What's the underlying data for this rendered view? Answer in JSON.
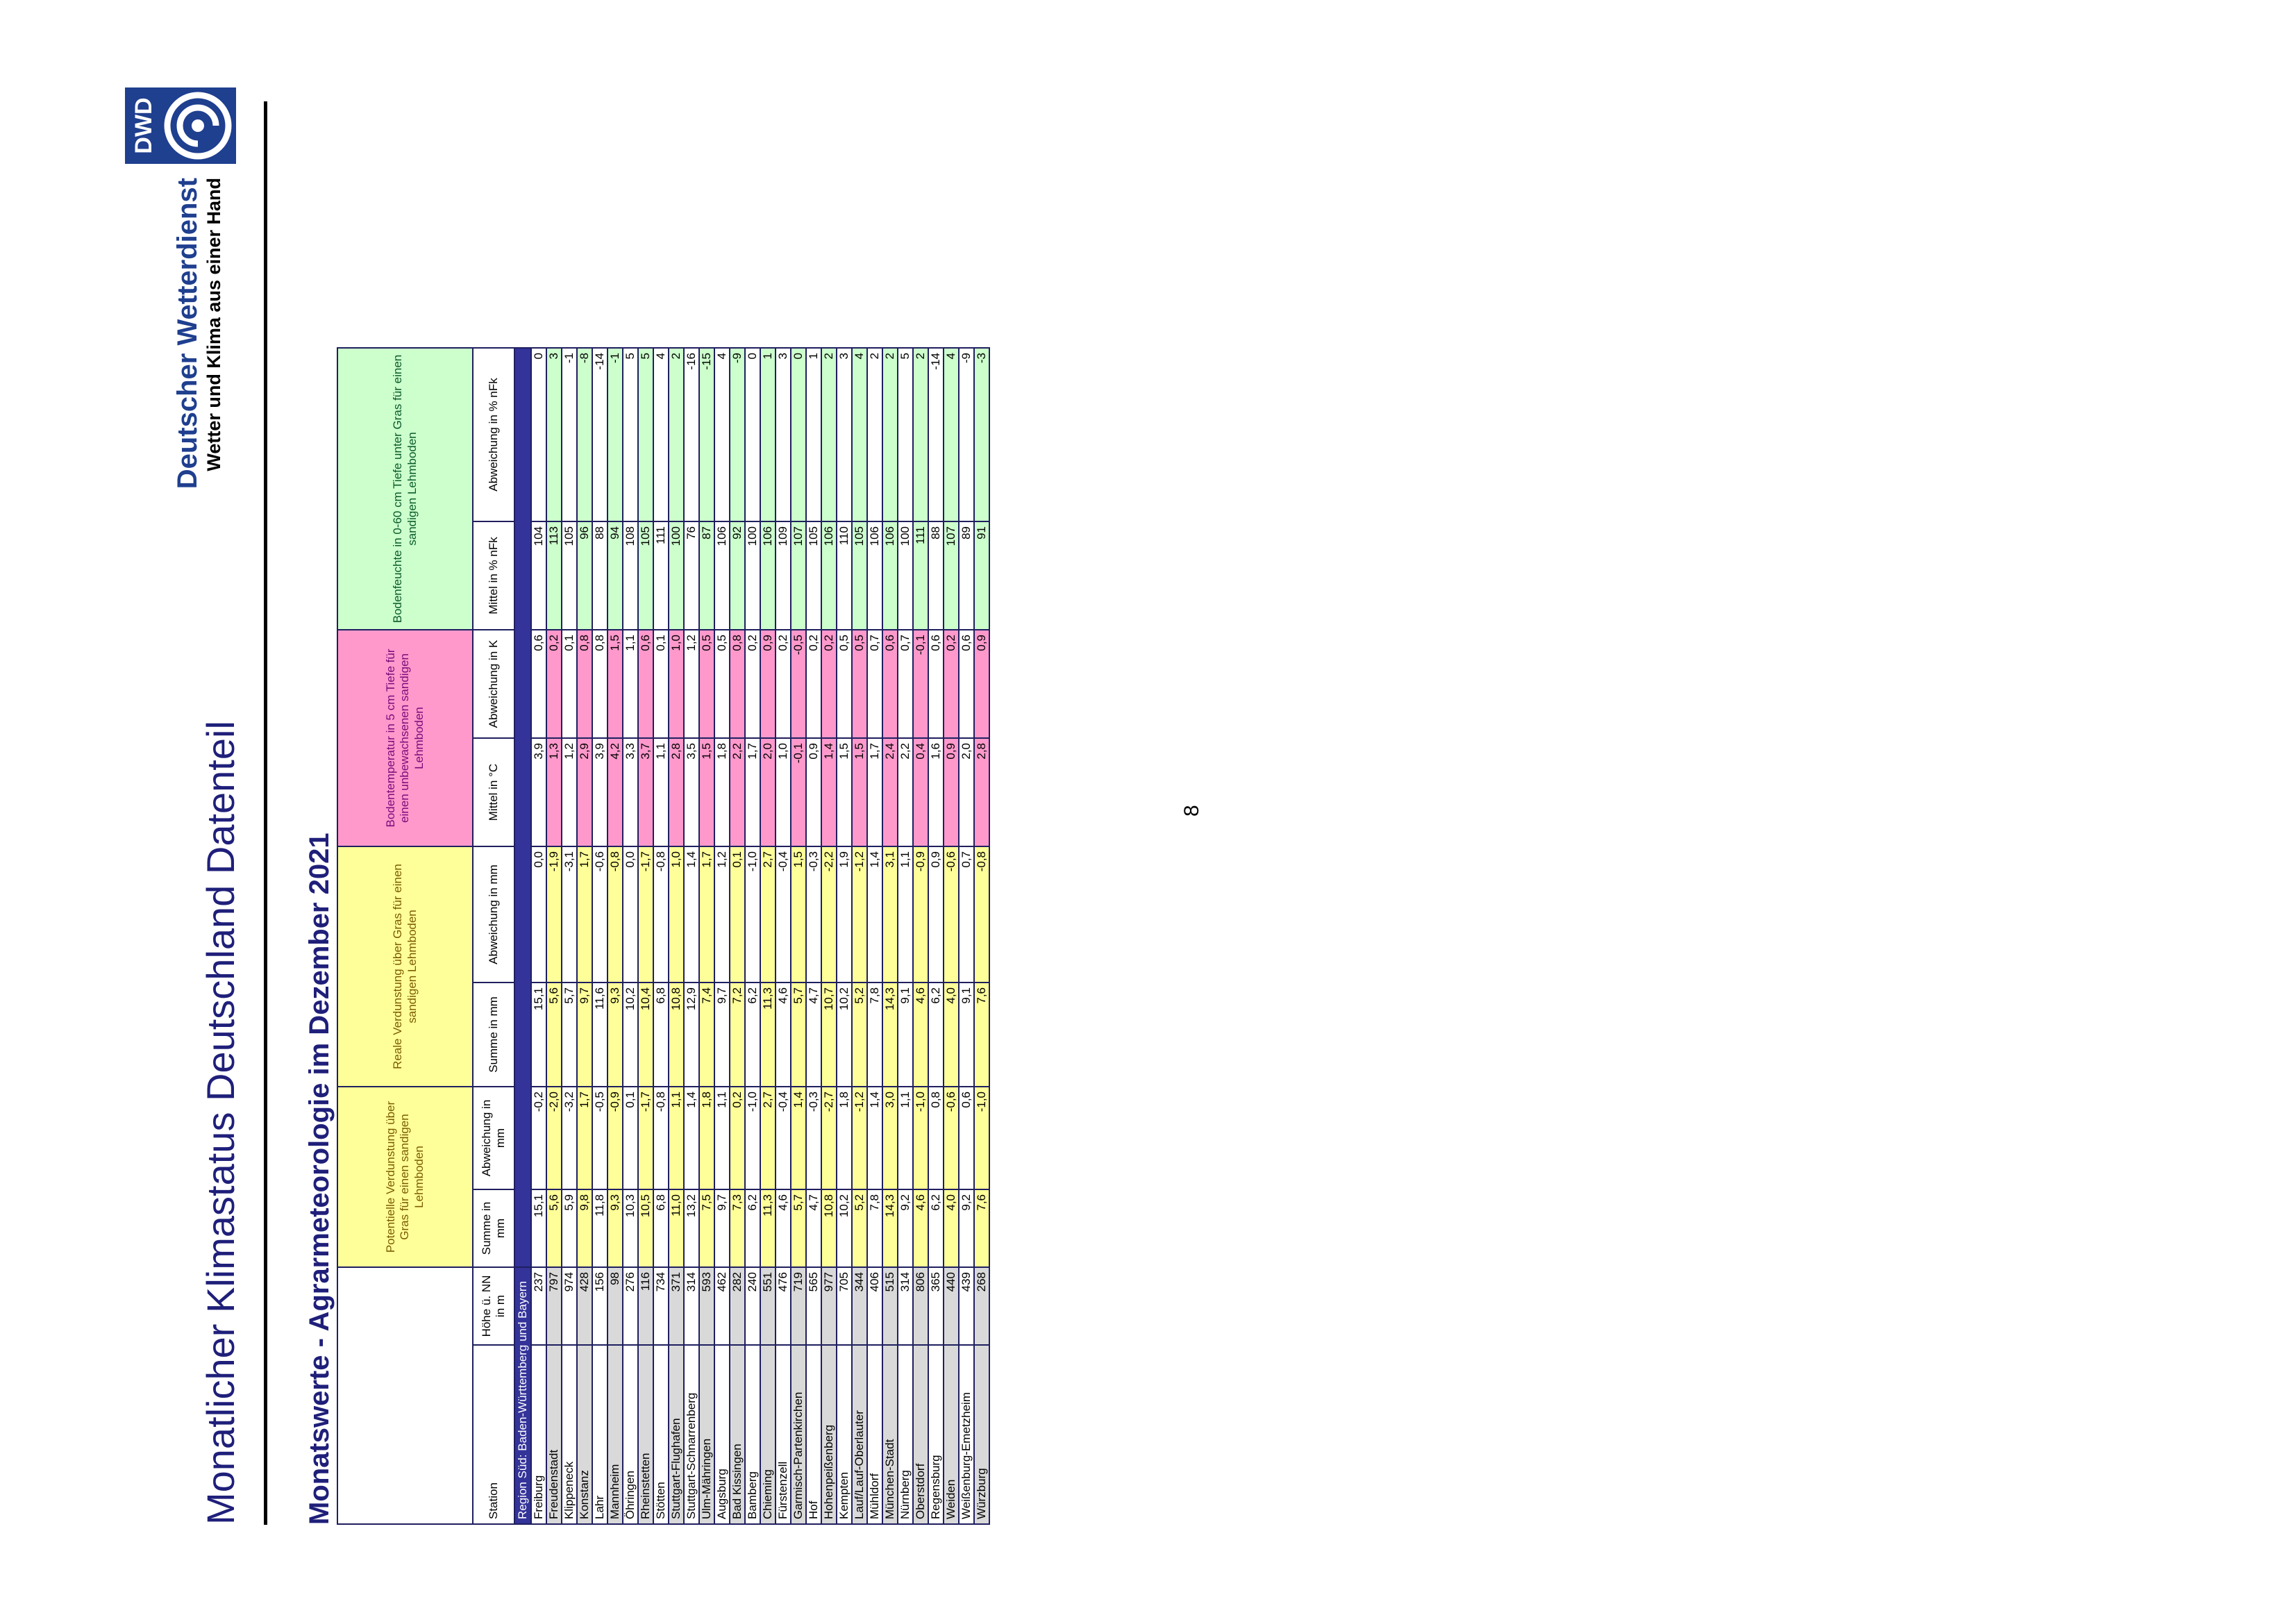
{
  "header": {
    "title": "Monatlicher Klimastatus Deutschland Datenteil",
    "subtitle": "Monatswerte - Agrarmeteorologie im Dezember 2021"
  },
  "brand": {
    "name": "Deutscher Wetterdienst",
    "tagline": "Wetter und Klima aus einer Hand",
    "logo_text": "DWD",
    "logo_icon": "dwd-swirl-icon",
    "logo_color": "#1f3f8f"
  },
  "page_number": "8",
  "colors": {
    "evap": "#ffff99",
    "temp": "#ff99cc",
    "moist": "#ccffcc",
    "station_shade": "#d9d9d9",
    "region_bar": "#333399"
  },
  "table": {
    "groups": {
      "pot": "Potentielle Verdunstung über Gras für einen sandigen Lehmboden",
      "real": "Reale Verdunstung über Gras für einen sandigen Lehmboden",
      "temp": "Bodentemperatur in 5 cm Tiefe für einen unbewachsenen sandigen Lehmboden",
      "moist": "Bodenfeuchte in 0-60 cm Tiefe unter Gras für einen sandigen Lehmboden"
    },
    "columns": {
      "station": "Station",
      "altitude": "Höhe ü. NN in m",
      "pot_sum": "Summe in mm",
      "pot_dev": "Abweichung in mm",
      "real_sum": "Summe in mm",
      "real_dev": "Abweichung in mm",
      "temp_mean": "Mittel in °C",
      "temp_dev": "Abweichung in K",
      "moist_mean": "Mittel in % nFk",
      "moist_dev": "Abweichung in % nFk"
    },
    "region": "Region Süd: Baden-Württemberg und Bayern",
    "rows": [
      {
        "s": "Freiburg",
        "h": "237",
        "ps": "15,1",
        "pd": "-0,2",
        "rs": "15,1",
        "rd": "0,0",
        "tm": "3,9",
        "td": "0,6",
        "mm": "104",
        "md": "0",
        "hl": false
      },
      {
        "s": "Freudenstadt",
        "h": "797",
        "ps": "5,6",
        "pd": "-2,0",
        "rs": "5,6",
        "rd": "-1,9",
        "tm": "1,3",
        "td": "0,2",
        "mm": "113",
        "md": "3",
        "hl": true
      },
      {
        "s": "Klippeneck",
        "h": "974",
        "ps": "5,9",
        "pd": "-3,2",
        "rs": "5,7",
        "rd": "-3,1",
        "tm": "1,2",
        "td": "0,1",
        "mm": "105",
        "md": "-1",
        "hl": false
      },
      {
        "s": "Konstanz",
        "h": "428",
        "ps": "9,8",
        "pd": "1,7",
        "rs": "9,7",
        "rd": "1,7",
        "tm": "2,9",
        "td": "0,8",
        "mm": "96",
        "md": "-8",
        "hl": true
      },
      {
        "s": "Lahr",
        "h": "156",
        "ps": "11,8",
        "pd": "-0,5",
        "rs": "11,6",
        "rd": "-0,6",
        "tm": "3,9",
        "td": "0,8",
        "mm": "88",
        "md": "-14",
        "hl": false
      },
      {
        "s": "Mannheim",
        "h": "98",
        "ps": "9,3",
        "pd": "-0,9",
        "rs": "9,3",
        "rd": "-0,8",
        "tm": "4,2",
        "td": "1,5",
        "mm": "94",
        "md": "-1",
        "hl": true
      },
      {
        "s": "Öhringen",
        "h": "276",
        "ps": "10,3",
        "pd": "0,1",
        "rs": "10,2",
        "rd": "0,0",
        "tm": "3,3",
        "td": "1,1",
        "mm": "108",
        "md": "5",
        "hl": false
      },
      {
        "s": "Rheinstetten",
        "h": "116",
        "ps": "10,5",
        "pd": "-1,7",
        "rs": "10,4",
        "rd": "-1,7",
        "tm": "3,7",
        "td": "0,6",
        "mm": "105",
        "md": "5",
        "hl": true
      },
      {
        "s": "Stötten",
        "h": "734",
        "ps": "6,8",
        "pd": "-0,8",
        "rs": "6,8",
        "rd": "-0,8",
        "tm": "1,1",
        "td": "0,1",
        "mm": "111",
        "md": "4",
        "hl": false
      },
      {
        "s": "Stuttgart-Flughafen",
        "h": "371",
        "ps": "11,0",
        "pd": "1,1",
        "rs": "10,8",
        "rd": "1,0",
        "tm": "2,8",
        "td": "1,0",
        "mm": "100",
        "md": "2",
        "hl": true
      },
      {
        "s": "Stuttgart-Schnarrenberg",
        "h": "314",
        "ps": "13,2",
        "pd": "1,4",
        "rs": "12,9",
        "rd": "1,4",
        "tm": "3,5",
        "td": "1,2",
        "mm": "76",
        "md": "-16",
        "hl": false
      },
      {
        "s": "Ulm-Mähringen",
        "h": "593",
        "ps": "7,5",
        "pd": "1,8",
        "rs": "7,4",
        "rd": "1,7",
        "tm": "1,5",
        "td": "0,5",
        "mm": "87",
        "md": "-15",
        "hl": true
      },
      {
        "s": "Augsburg",
        "h": "462",
        "ps": "9,7",
        "pd": "1,1",
        "rs": "9,7",
        "rd": "1,2",
        "tm": "1,8",
        "td": "0,5",
        "mm": "106",
        "md": "4",
        "hl": false
      },
      {
        "s": "Bad Kissingen",
        "h": "282",
        "ps": "7,3",
        "pd": "0,2",
        "rs": "7,2",
        "rd": "0,1",
        "tm": "2,2",
        "td": "0,8",
        "mm": "92",
        "md": "-9",
        "hl": true
      },
      {
        "s": "Bamberg",
        "h": "240",
        "ps": "6,2",
        "pd": "-1,0",
        "rs": "6,2",
        "rd": "-1,0",
        "tm": "1,7",
        "td": "0,2",
        "mm": "100",
        "md": "0",
        "hl": false
      },
      {
        "s": "Chieming",
        "h": "551",
        "ps": "11,3",
        "pd": "2,7",
        "rs": "11,3",
        "rd": "2,7",
        "tm": "2,0",
        "td": "0,9",
        "mm": "106",
        "md": "1",
        "hl": true
      },
      {
        "s": "Fürstenzell",
        "h": "476",
        "ps": "4,6",
        "pd": "-0,4",
        "rs": "4,6",
        "rd": "-0,4",
        "tm": "1,0",
        "td": "0,2",
        "mm": "109",
        "md": "3",
        "hl": false
      },
      {
        "s": "Garmisch-Partenkirchen",
        "h": "719",
        "ps": "5,7",
        "pd": "1,4",
        "rs": "5,7",
        "rd": "1,5",
        "tm": "-0,1",
        "td": "-0,5",
        "mm": "107",
        "md": "0",
        "hl": true
      },
      {
        "s": "Hof",
        "h": "565",
        "ps": "4,7",
        "pd": "-0,3",
        "rs": "4,7",
        "rd": "-0,3",
        "tm": "0,9",
        "td": "0,2",
        "mm": "105",
        "md": "1",
        "hl": false
      },
      {
        "s": "Hohenpeißenberg",
        "h": "977",
        "ps": "10,8",
        "pd": "-2,7",
        "rs": "10,7",
        "rd": "-2,2",
        "tm": "1,4",
        "td": "0,2",
        "mm": "106",
        "md": "2",
        "hl": true
      },
      {
        "s": "Kempten",
        "h": "705",
        "ps": "10,2",
        "pd": "1,8",
        "rs": "10,2",
        "rd": "1,9",
        "tm": "1,5",
        "td": "0,5",
        "mm": "110",
        "md": "3",
        "hl": false
      },
      {
        "s": "Lauf/Lauf-Oberlauter",
        "h": "344",
        "ps": "5,2",
        "pd": "-1,2",
        "rs": "5,2",
        "rd": "-1,2",
        "tm": "1,5",
        "td": "0,5",
        "mm": "105",
        "md": "4",
        "hl": true
      },
      {
        "s": "Mühldorf",
        "h": "406",
        "ps": "7,8",
        "pd": "1,4",
        "rs": "7,8",
        "rd": "1,4",
        "tm": "1,7",
        "td": "0,7",
        "mm": "106",
        "md": "2",
        "hl": false
      },
      {
        "s": "München-Stadt",
        "h": "515",
        "ps": "14,3",
        "pd": "3,0",
        "rs": "14,3",
        "rd": "3,1",
        "tm": "2,4",
        "td": "0,6",
        "mm": "106",
        "md": "2",
        "hl": true
      },
      {
        "s": "Nürnberg",
        "h": "314",
        "ps": "9,2",
        "pd": "1,1",
        "rs": "9,1",
        "rd": "1,1",
        "tm": "2,2",
        "td": "0,7",
        "mm": "100",
        "md": "5",
        "hl": false
      },
      {
        "s": "Oberstdorf",
        "h": "806",
        "ps": "4,6",
        "pd": "-1,0",
        "rs": "4,6",
        "rd": "-0,9",
        "tm": "0,4",
        "td": "-0,1",
        "mm": "111",
        "md": "2",
        "hl": true
      },
      {
        "s": "Regensburg",
        "h": "365",
        "ps": "6,2",
        "pd": "0,8",
        "rs": "6,2",
        "rd": "0,9",
        "tm": "1,6",
        "td": "0,6",
        "mm": "88",
        "md": "-14",
        "hl": false
      },
      {
        "s": "Weiden",
        "h": "440",
        "ps": "4,0",
        "pd": "-0,6",
        "rs": "4,0",
        "rd": "-0,6",
        "tm": "0,9",
        "td": "0,2",
        "mm": "107",
        "md": "4",
        "hl": true
      },
      {
        "s": "Weißenburg-Emetzheim",
        "h": "439",
        "ps": "9,2",
        "pd": "0,6",
        "rs": "9,1",
        "rd": "0,7",
        "tm": "2,0",
        "td": "0,6",
        "mm": "89",
        "md": "-9",
        "hl": false
      },
      {
        "s": "Würzburg",
        "h": "268",
        "ps": "7,6",
        "pd": "-1,0",
        "rs": "7,6",
        "rd": "-0,8",
        "tm": "2,8",
        "td": "0,9",
        "mm": "91",
        "md": "-3",
        "hl": true
      }
    ]
  }
}
